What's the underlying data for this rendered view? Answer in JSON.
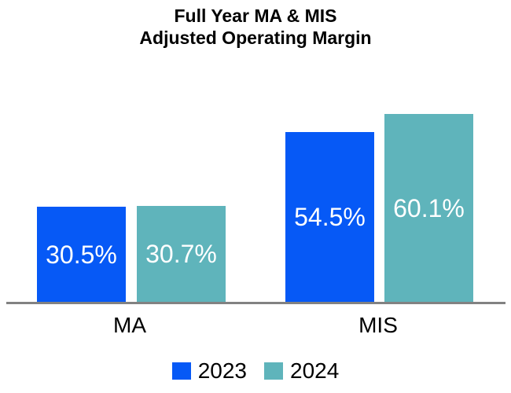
{
  "title": {
    "line1": "Full Year MA & MIS",
    "line2": "Adjusted Operating Margin"
  },
  "chart_data": {
    "type": "bar",
    "title": "Full Year MA & MIS Adjusted Operating Margin",
    "categories": [
      "MA",
      "MIS"
    ],
    "series": [
      {
        "name": "2023",
        "color": "#0659F6",
        "values": [
          30.5,
          54.5
        ],
        "labels": [
          "30.5%",
          "54.5%"
        ]
      },
      {
        "name": "2024",
        "color": "#5FB4BB",
        "values": [
          30.7,
          60.1
        ],
        "labels": [
          "30.7%",
          "60.1%"
        ]
      }
    ],
    "unit": "%",
    "ylim": [
      0,
      63.5
    ],
    "grid": false,
    "y_axis_visible": false,
    "legend_position": "bottom",
    "axis_line_color": "#828282",
    "value_label_color": "#FFFFFF",
    "value_label_position": "inside-center"
  }
}
